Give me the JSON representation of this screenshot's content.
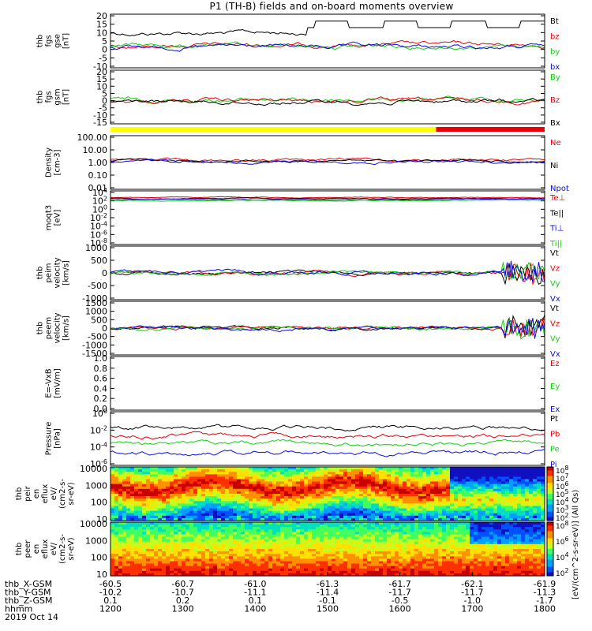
{
  "title": "P1 (TH-B) fields and on-board moments overview",
  "colors": {
    "black": "#000000",
    "red": "#e8000b",
    "green": "#10d010",
    "blue": "#0a0ae8",
    "yellow": "#ffff00"
  },
  "chart_data": {
    "type": "line",
    "x_time_ticks": [
      "1200",
      "1300",
      "1400",
      "1500",
      "1600",
      "1700",
      "1800"
    ],
    "time_range": [
      "1200",
      "1800"
    ],
    "date_label": "2019 Oct 14",
    "orbit_rows": [
      {
        "label": "thb_X-GSM",
        "values": [
          "-60.5",
          "-60.7",
          "-61.0",
          "-61.3",
          "-61.7",
          "-62.1",
          "-61.9"
        ]
      },
      {
        "label": "thb_Y-GSM",
        "values": [
          "-10.2",
          "-10.7",
          "-11.1",
          "-11.4",
          "-11.7",
          "-11.7",
          "-11.3"
        ]
      },
      {
        "label": "thb_Z-GSM",
        "values": [
          "0.1",
          "0.2",
          "0.1",
          "-0.1",
          "-0.5",
          "-1.0",
          "-1.7"
        ]
      },
      {
        "label": "hhmm",
        "values": [
          "1200",
          "1300",
          "1400",
          "1500",
          "1600",
          "1700",
          "1800"
        ]
      }
    ],
    "region_bar": {
      "yellow_until": "1650",
      "red_from": "1650"
    },
    "panels": [
      {
        "id": "fgs_gse",
        "ylabel": [
          "thb",
          "fgs",
          "gse",
          "[nT]"
        ],
        "ticks": [
          "20",
          "15",
          "10",
          "5",
          "0",
          "-5",
          "-10"
        ],
        "ylim": [
          -12,
          21
        ],
        "legend": [
          {
            "name": "Bt",
            "color": "black"
          },
          {
            "name": "bz",
            "color": "red"
          },
          {
            "name": "by",
            "color": "green"
          },
          {
            "name": "bx",
            "color": "blue"
          }
        ]
      },
      {
        "id": "fgs_gsm",
        "ylabel": [
          "thb",
          "fgs",
          "gsm",
          "[nT]"
        ],
        "ticks": [
          "20",
          "15",
          "10",
          "5",
          "0",
          "-5",
          "-10",
          "-15"
        ],
        "ylim": [
          -17,
          21
        ],
        "legend": [
          {
            "name": "By",
            "color": "green"
          },
          {
            "name": "Bz",
            "color": "red"
          },
          {
            "name": "Bx",
            "color": "black"
          }
        ]
      },
      {
        "id": "density",
        "ylabel": [
          "Density",
          "[cm-3]"
        ],
        "ticks": [
          "100.00",
          "10.00",
          "1.00",
          "0.10",
          "0.01"
        ],
        "scale": "log",
        "legend": [
          {
            "name": "Ne",
            "color": "red"
          },
          {
            "name": "Ni",
            "color": "black"
          },
          {
            "name": "Npot",
            "color": "blue"
          }
        ]
      },
      {
        "id": "temp",
        "ylabel": [
          "moqt3",
          "[eV]"
        ],
        "ticks": [
          "10^4",
          "10^2",
          "10^0",
          "10^-2",
          "10^-4",
          "10^-6",
          "10^-8"
        ],
        "scale": "log",
        "legend": [
          {
            "name": "Te⊥",
            "color": "red"
          },
          {
            "name": "Te||",
            "color": "black"
          },
          {
            "name": "Ti⊥",
            "color": "blue"
          },
          {
            "name": "Ti||",
            "color": "green"
          }
        ]
      },
      {
        "id": "peim_vel",
        "ylabel": [
          "thb",
          "peim",
          "velocity",
          "[km/s]"
        ],
        "ticks": [
          "1000",
          "500",
          "0",
          "-500",
          "-1000"
        ],
        "ylim": [
          -1000,
          1000
        ],
        "legend": [
          {
            "name": "Vt",
            "color": "black"
          },
          {
            "name": "Vz",
            "color": "red"
          },
          {
            "name": "Vy",
            "color": "green"
          },
          {
            "name": "Vx",
            "color": "blue"
          }
        ]
      },
      {
        "id": "peem_vel",
        "ylabel": [
          "thb",
          "peem",
          "velocity",
          "[km/s]"
        ],
        "ticks": [
          "1500",
          "1000",
          "500",
          "0",
          "-500",
          "-1000",
          "-1500"
        ],
        "ylim": [
          -1500,
          1500
        ],
        "legend": [
          {
            "name": "Vt",
            "color": "black"
          },
          {
            "name": "Vz",
            "color": "red"
          },
          {
            "name": "Vy",
            "color": "green"
          },
          {
            "name": "Vx",
            "color": "blue"
          }
        ]
      },
      {
        "id": "efield",
        "ylabel": [
          "E=-VxB",
          "[mV/m]"
        ],
        "ticks": [
          "1.0",
          "0.8",
          "0.6",
          "0.4",
          "0.2",
          "0.0"
        ],
        "ylim": [
          0,
          1
        ],
        "legend": [
          {
            "name": "Ez",
            "color": "red"
          },
          {
            "name": "Ey",
            "color": "green"
          },
          {
            "name": "Ex",
            "color": "blue"
          }
        ]
      },
      {
        "id": "pressure",
        "ylabel": [
          "Pressure",
          "[nPa]"
        ],
        "ticks": [
          "10^0",
          "10^-2",
          "10^-4",
          "10^-6"
        ],
        "scale": "log",
        "legend": [
          {
            "name": "Pt",
            "color": "black"
          },
          {
            "name": "Pb",
            "color": "red"
          },
          {
            "name": "Pe",
            "color": "green"
          },
          {
            "name": "Pi",
            "color": "blue"
          }
        ]
      },
      {
        "id": "peir_eflux",
        "ylabel": [
          "thb",
          "peir",
          "en",
          "eflux",
          "eV/",
          "(cm2-s-",
          "sr-eV)"
        ],
        "ticks": [
          "10000",
          "1000",
          "100",
          "10"
        ],
        "scale": "log",
        "spectrogram": true,
        "cbar_ticks": [
          "10^8",
          "10^7",
          "10^6",
          "10^5",
          "10^4",
          "10^3",
          "10^2"
        ]
      },
      {
        "id": "peer_eflux",
        "ylabel": [
          "thb",
          "peer",
          "en",
          "eflux",
          "eV/",
          "(cm2-s-",
          "sr-eV)"
        ],
        "ticks": [
          "10000",
          "1000",
          "100",
          "10"
        ],
        "scale": "log",
        "spectrogram": true,
        "cbar_ticks": [
          "10^8",
          "10^6",
          "10^4",
          "10^2"
        ]
      }
    ],
    "colorbar_label": "[eV/(cm^2-s-sr-eV)] (All Qs)"
  }
}
